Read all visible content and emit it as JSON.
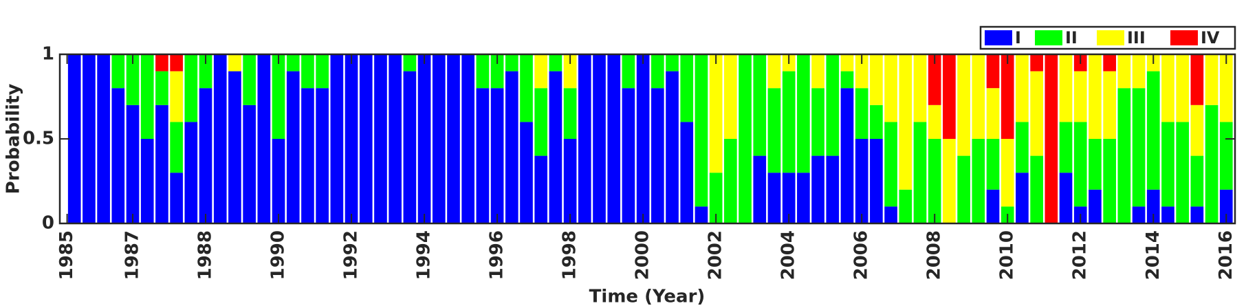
{
  "chart_data": {
    "type": "stacked_bar",
    "xlabel": "Time (Year)",
    "ylabel": "Probability",
    "x": [
      1,
      2,
      3,
      4,
      5,
      6,
      7,
      8,
      9,
      10,
      11,
      12,
      13,
      14,
      15,
      16,
      17,
      18,
      19,
      20,
      21,
      22,
      23,
      24,
      25,
      26,
      27,
      28,
      29,
      30,
      31,
      32,
      33,
      34,
      35,
      36,
      37,
      38,
      39,
      40,
      41,
      42,
      43,
      44,
      45,
      46,
      47,
      48,
      49,
      50,
      51,
      52,
      53,
      54,
      55,
      56,
      57,
      58,
      59,
      60,
      61,
      62,
      63,
      64,
      65,
      66,
      67,
      68,
      69,
      70,
      71,
      72,
      73,
      74,
      75,
      76,
      77,
      78,
      79,
      80
    ],
    "xlim": [
      0,
      80.6
    ],
    "xticks": [
      {
        "value": 0.5,
        "label": "1985"
      },
      {
        "value": 5,
        "label": "1987"
      },
      {
        "value": 10,
        "label": "1988"
      },
      {
        "value": 15,
        "label": "1990"
      },
      {
        "value": 20,
        "label": "1992"
      },
      {
        "value": 25,
        "label": "1994"
      },
      {
        "value": 30,
        "label": "1996"
      },
      {
        "value": 35,
        "label": "1998"
      },
      {
        "value": 40,
        "label": "2000"
      },
      {
        "value": 45,
        "label": "2002"
      },
      {
        "value": 50,
        "label": "2004"
      },
      {
        "value": 55,
        "label": "2006"
      },
      {
        "value": 60,
        "label": "2008"
      },
      {
        "value": 65,
        "label": "2010"
      },
      {
        "value": 70,
        "label": "2012"
      },
      {
        "value": 75,
        "label": "2014"
      },
      {
        "value": 80,
        "label": "2016"
      }
    ],
    "ylim": [
      0,
      1
    ],
    "yticks": [
      0,
      0.5,
      1
    ],
    "legend": "top-right-outside",
    "series": [
      {
        "name": "I",
        "color": "#0000ff",
        "values": [
          1,
          1,
          1,
          0.8,
          0.7,
          0.5,
          0.7,
          0.3,
          0.6,
          0.8,
          1,
          0.9,
          0.7,
          1,
          0.5,
          0.9,
          0.8,
          0.8,
          1,
          1,
          1,
          1,
          1,
          0.9,
          1,
          1,
          1,
          1,
          0.8,
          0.8,
          0.9,
          0.6,
          0.4,
          0.9,
          0.5,
          1,
          1,
          1,
          0.8,
          1,
          0.8,
          0.9,
          0.6,
          0.1,
          0,
          0,
          0,
          0.4,
          0.3,
          0.3,
          0.3,
          0.4,
          0.4,
          0.8,
          0.5,
          0.5,
          0.1,
          0,
          0,
          0,
          0,
          0,
          0,
          0.2,
          0,
          0.3,
          0,
          0,
          0.3,
          0.1,
          0.2,
          0,
          0,
          0.1,
          0.2,
          0.1,
          0,
          0.1,
          0,
          0.2
        ]
      },
      {
        "name": "II",
        "color": "#00ff00",
        "values": [
          0,
          0,
          0,
          0.2,
          0.3,
          0.5,
          0.2,
          0.3,
          0.4,
          0.2,
          0,
          0,
          0.3,
          0,
          0.5,
          0.1,
          0.2,
          0.2,
          0,
          0,
          0,
          0,
          0,
          0.1,
          0,
          0,
          0,
          0,
          0.2,
          0.2,
          0.1,
          0.4,
          0.4,
          0.1,
          0.3,
          0,
          0,
          0,
          0.2,
          0,
          0.2,
          0.1,
          0.4,
          0.9,
          0.3,
          0.5,
          1,
          0.6,
          0.5,
          0.6,
          0.7,
          0.4,
          0.6,
          0.1,
          0.3,
          0.2,
          0.5,
          0.2,
          0.6,
          0.5,
          0,
          0.4,
          0.5,
          0.3,
          0.1,
          0.3,
          0.4,
          0,
          0.3,
          0.5,
          0.3,
          0.5,
          0.8,
          0.7,
          0.7,
          0.5,
          0.6,
          0.3,
          0.7,
          0.4
        ]
      },
      {
        "name": "III",
        "color": "#ffff00",
        "values": [
          0,
          0,
          0,
          0,
          0,
          0,
          0,
          0.3,
          0,
          0,
          0,
          0.1,
          0,
          0,
          0,
          0,
          0,
          0,
          0,
          0,
          0,
          0,
          0,
          0,
          0,
          0,
          0,
          0,
          0,
          0,
          0,
          0,
          0.2,
          0,
          0.2,
          0,
          0,
          0,
          0,
          0,
          0,
          0,
          0,
          0,
          0.7,
          0.5,
          0,
          0,
          0.2,
          0.1,
          0,
          0.2,
          0,
          0.1,
          0.2,
          0.3,
          0.4,
          0.8,
          0.4,
          0.2,
          0.5,
          0.6,
          0.5,
          0.3,
          0.4,
          0.4,
          0.5,
          0,
          0.4,
          0.3,
          0.5,
          0.4,
          0.2,
          0.2,
          0.1,
          0.4,
          0.4,
          0.3,
          0.3,
          0.4
        ]
      },
      {
        "name": "IV",
        "color": "#ff0000",
        "values": [
          0,
          0,
          0,
          0,
          0,
          0,
          0.1,
          0.1,
          0,
          0,
          0,
          0,
          0,
          0,
          0,
          0,
          0,
          0,
          0,
          0,
          0,
          0,
          0,
          0,
          0,
          0,
          0,
          0,
          0,
          0,
          0,
          0,
          0,
          0,
          0,
          0,
          0,
          0,
          0,
          0,
          0,
          0,
          0,
          0,
          0,
          0,
          0,
          0,
          0,
          0,
          0,
          0,
          0,
          0,
          0,
          0,
          0,
          0,
          0,
          0.3,
          0.5,
          0,
          0,
          0.2,
          0.5,
          0,
          0.1,
          1,
          0,
          0.1,
          0,
          0.1,
          0,
          0,
          0,
          0,
          0,
          0.3,
          0,
          0
        ]
      }
    ]
  }
}
